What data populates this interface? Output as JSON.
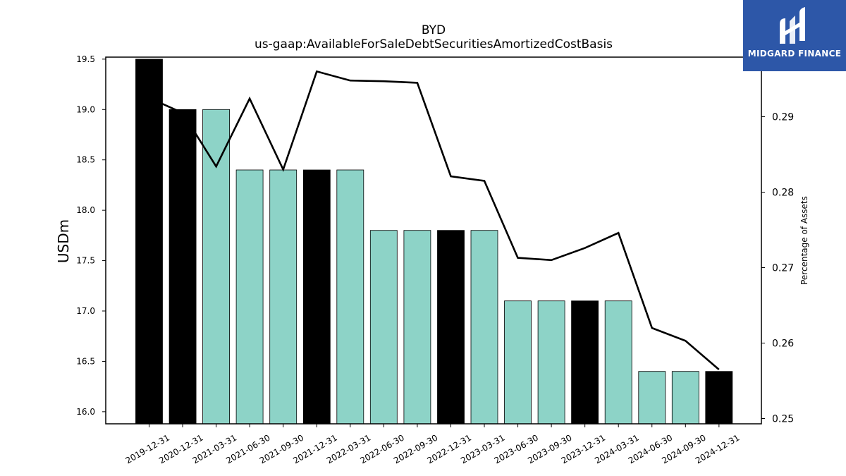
{
  "chart_data": {
    "type": "bar",
    "title": "BYD",
    "subtitle": "us-gaap:AvailableForSaleDebtSecuritiesAmortizedCostBasis",
    "ylabel": "USDm",
    "y2label": "Percentage of Assets",
    "ylim": [
      15.88,
      19.52
    ],
    "y2lim": [
      0.2493,
      0.2979
    ],
    "yticks": [
      "16.0",
      "16.5",
      "17.0",
      "17.5",
      "18.0",
      "18.5",
      "19.0",
      "19.5"
    ],
    "y2ticks": [
      "0.25",
      "0.26",
      "0.27",
      "0.28",
      "0.29"
    ],
    "categories": [
      "2019-12-31",
      "2020-12-31",
      "2021-03-31",
      "2021-06-30",
      "2021-09-30",
      "2021-12-31",
      "2022-03-31",
      "2022-06-30",
      "2022-09-30",
      "2022-12-31",
      "2023-03-31",
      "2023-06-30",
      "2023-09-30",
      "2023-12-31",
      "2024-03-31",
      "2024-06-30",
      "2024-09-30",
      "2024-12-31"
    ],
    "series": [
      {
        "values": [
          19.5,
          19.0,
          19.0,
          18.4,
          18.4,
          18.4,
          18.4,
          17.8,
          17.8,
          17.8,
          17.8,
          17.1,
          17.1,
          17.1,
          17.1,
          16.4,
          16.4,
          16.4
        ],
        "axis": "left",
        "kind": "bar",
        "annual": [
          true,
          true,
          false,
          false,
          false,
          true,
          false,
          false,
          false,
          true,
          false,
          false,
          false,
          true,
          false,
          false,
          false,
          true
        ]
      },
      {
        "values": [
          0.2925,
          0.2905,
          0.2834,
          0.2924,
          0.283,
          0.296,
          0.2948,
          0.2947,
          0.2945,
          0.2821,
          0.2815,
          0.2713,
          0.271,
          0.2726,
          0.2746,
          0.262,
          0.2603,
          0.2565
        ],
        "axis": "right",
        "kind": "line"
      }
    ],
    "colors": {
      "annual_bar": "#000000",
      "quarter_bar": "#8dd3c7",
      "line": "#000000"
    },
    "grid": false
  },
  "logo": {
    "text": "MIDGARD FINANCE",
    "background": "#2d57a8",
    "icon": "midgard-logo-icon"
  }
}
